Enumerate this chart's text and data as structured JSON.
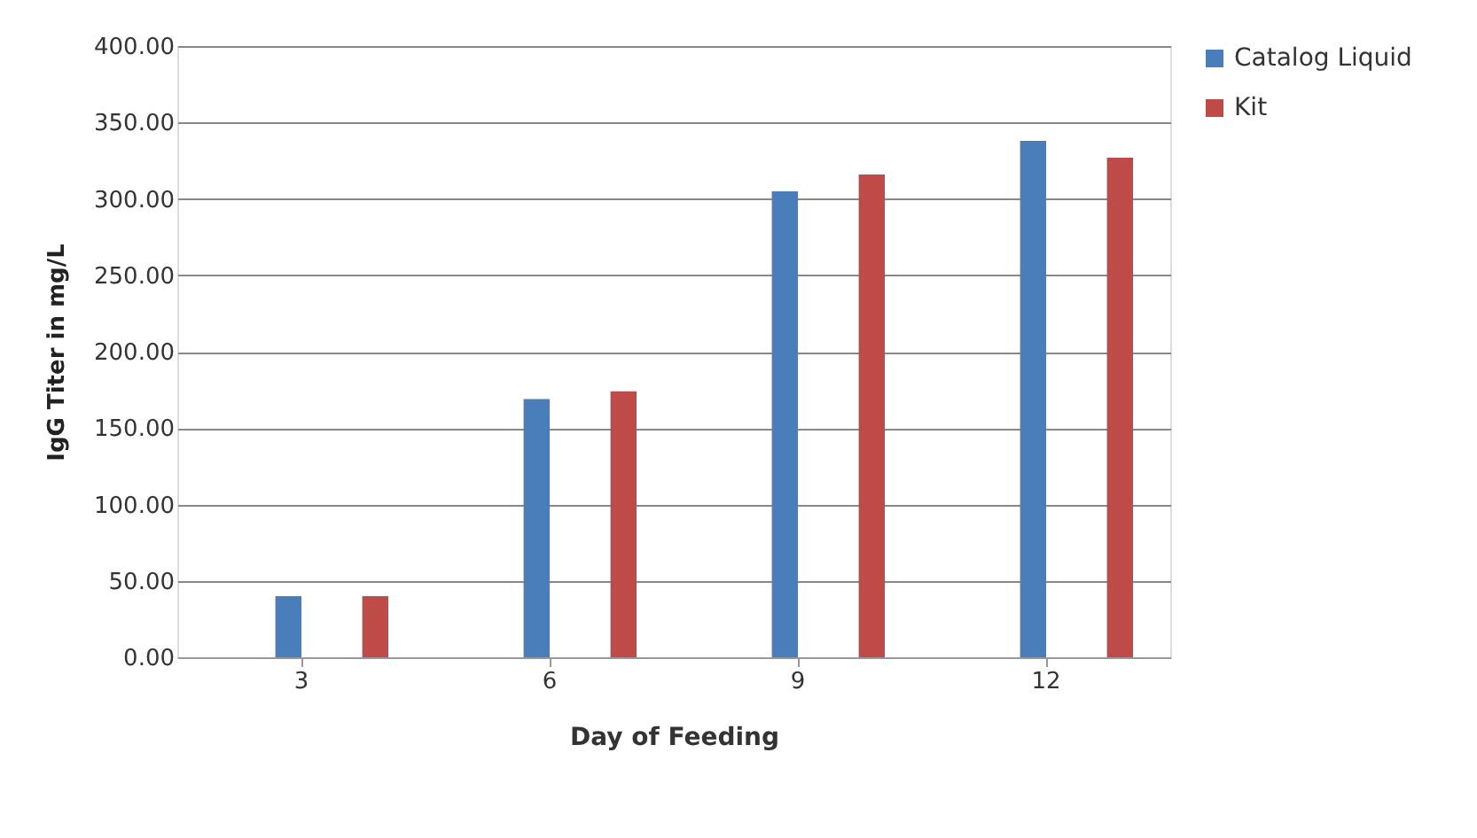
{
  "chart_data": {
    "type": "bar",
    "xlabel": "Day of Feeding",
    "ylabel": "IgG Titer in mg/L",
    "categories": [
      "3",
      "6",
      "9",
      "12"
    ],
    "series": [
      {
        "name": "Catalog Liquid",
        "color": "#4a7ebb",
        "values": [
          40,
          169,
          305,
          338
        ]
      },
      {
        "name": "Kit",
        "color": "#be4b48",
        "values": [
          40,
          174,
          316,
          327
        ]
      }
    ],
    "ylim": [
      0,
      400
    ],
    "yticks": [
      {
        "value": 0,
        "label": "0.00"
      },
      {
        "value": 50,
        "label": "50.00"
      },
      {
        "value": 100,
        "label": "100.00"
      },
      {
        "value": 150,
        "label": "150.00"
      },
      {
        "value": 200,
        "label": "200.00"
      },
      {
        "value": 250,
        "label": "250.00"
      },
      {
        "value": 300,
        "label": "300.00"
      },
      {
        "value": 350,
        "label": "350.00"
      },
      {
        "value": 400,
        "label": "400.00"
      }
    ],
    "grid": "y",
    "legend": "right"
  }
}
